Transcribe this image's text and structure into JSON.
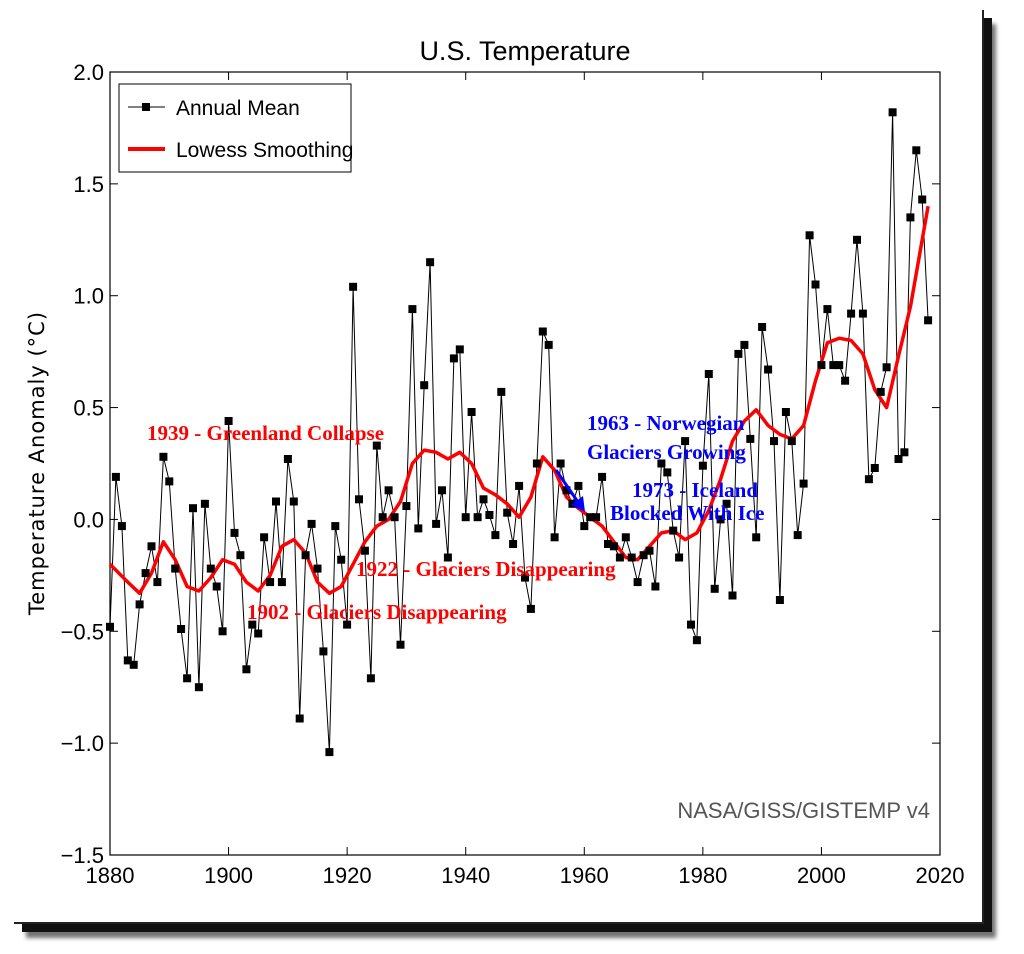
{
  "chart_data": {
    "type": "line",
    "title": "U.S. Temperature",
    "xlabel": "",
    "ylabel": "Temperature Anomaly (°C)",
    "xlim": [
      1880,
      2020
    ],
    "ylim": [
      -1.5,
      2.0
    ],
    "x_ticks": [
      1880,
      1900,
      1920,
      1940,
      1960,
      1980,
      2000,
      2020
    ],
    "y_ticks": [
      -1.5,
      -1.0,
      -0.5,
      0.0,
      0.5,
      1.0,
      1.5,
      2.0
    ],
    "y_tick_labels": [
      "−1.5",
      "−1.0",
      "−0.5",
      "0.0",
      "0.5",
      "1.0",
      "1.5",
      "2.0"
    ],
    "grid": false,
    "legend_position": "top-left",
    "source_note": "NASA/GISS/GISTEMP v4",
    "series": [
      {
        "name": "Annual Mean",
        "color": "#000000",
        "marker": "square",
        "x": [
          1880,
          1881,
          1882,
          1883,
          1884,
          1885,
          1886,
          1887,
          1888,
          1889,
          1890,
          1891,
          1892,
          1893,
          1894,
          1895,
          1896,
          1897,
          1898,
          1899,
          1900,
          1901,
          1902,
          1903,
          1904,
          1905,
          1906,
          1907,
          1908,
          1909,
          1910,
          1911,
          1912,
          1913,
          1914,
          1915,
          1916,
          1917,
          1918,
          1919,
          1920,
          1921,
          1922,
          1923,
          1924,
          1925,
          1926,
          1927,
          1928,
          1929,
          1930,
          1931,
          1932,
          1933,
          1934,
          1935,
          1936,
          1937,
          1938,
          1939,
          1940,
          1941,
          1942,
          1943,
          1944,
          1945,
          1946,
          1947,
          1948,
          1949,
          1950,
          1951,
          1952,
          1953,
          1954,
          1955,
          1956,
          1957,
          1958,
          1959,
          1960,
          1961,
          1962,
          1963,
          1964,
          1965,
          1966,
          1967,
          1968,
          1969,
          1970,
          1971,
          1972,
          1973,
          1974,
          1975,
          1976,
          1977,
          1978,
          1979,
          1980,
          1981,
          1982,
          1983,
          1984,
          1985,
          1986,
          1987,
          1988,
          1989,
          1990,
          1991,
          1992,
          1993,
          1994,
          1995,
          1996,
          1997,
          1998,
          1999,
          2000,
          2001,
          2002,
          2003,
          2004,
          2005,
          2006,
          2007,
          2008,
          2009,
          2010,
          2011,
          2012,
          2013,
          2014,
          2015,
          2016,
          2017,
          2018
        ],
        "values": [
          -0.48,
          0.19,
          -0.03,
          -0.63,
          -0.65,
          -0.38,
          -0.24,
          -0.12,
          -0.28,
          0.28,
          0.17,
          -0.22,
          -0.49,
          -0.71,
          0.05,
          -0.75,
          0.07,
          -0.22,
          -0.3,
          -0.5,
          0.44,
          -0.06,
          -0.16,
          -0.67,
          -0.47,
          -0.51,
          -0.08,
          -0.28,
          0.08,
          -0.28,
          0.27,
          0.08,
          -0.89,
          -0.16,
          -0.02,
          -0.22,
          -0.59,
          -1.04,
          -0.03,
          -0.18,
          -0.47,
          1.04,
          0.09,
          -0.14,
          -0.71,
          0.33,
          0.01,
          0.13,
          0.01,
          -0.56,
          0.06,
          0.94,
          -0.04,
          0.6,
          1.15,
          -0.02,
          0.13,
          -0.17,
          0.72,
          0.76,
          0.01,
          0.48,
          0.01,
          0.09,
          0.02,
          -0.07,
          0.57,
          0.03,
          -0.11,
          0.15,
          -0.26,
          -0.4,
          0.25,
          0.84,
          0.78,
          -0.08,
          0.25,
          0.13,
          0.07,
          0.15,
          -0.03,
          0.01,
          0.01,
          0.19,
          -0.11,
          -0.12,
          -0.17,
          -0.08,
          -0.17,
          -0.28,
          -0.16,
          -0.14,
          -0.3,
          0.25,
          0.21,
          -0.05,
          -0.17,
          0.35,
          -0.47,
          -0.54,
          0.24,
          0.65,
          -0.31,
          0.0,
          0.07,
          -0.34,
          0.74,
          0.78,
          0.36,
          -0.08,
          0.86,
          0.67,
          0.35,
          -0.36,
          0.48,
          0.35,
          -0.07,
          0.16,
          1.27,
          1.05,
          0.69,
          0.94,
          0.69,
          0.69,
          0.62,
          0.92,
          1.25,
          0.92,
          0.18,
          0.23,
          0.57,
          0.68,
          1.82,
          0.27,
          0.3,
          1.35,
          1.65,
          1.43,
          0.89
        ]
      },
      {
        "name": "Lowess Smoothing",
        "color": "#ff0000",
        "x": [
          1880,
          1883,
          1885,
          1887,
          1889,
          1891,
          1893,
          1895,
          1897,
          1899,
          1901,
          1903,
          1905,
          1907,
          1909,
          1911,
          1913,
          1915,
          1917,
          1919,
          1921,
          1923,
          1925,
          1927,
          1929,
          1931,
          1933,
          1935,
          1937,
          1939,
          1941,
          1943,
          1945,
          1947,
          1949,
          1951,
          1953,
          1955,
          1957,
          1959,
          1961,
          1963,
          1965,
          1967,
          1969,
          1971,
          1973,
          1975,
          1977,
          1979,
          1981,
          1983,
          1985,
          1987,
          1989,
          1991,
          1993,
          1995,
          1997,
          1999,
          2001,
          2003,
          2005,
          2007,
          2009,
          2011,
          2013,
          2015,
          2018
        ],
        "values": [
          -0.2,
          -0.28,
          -0.33,
          -0.24,
          -0.1,
          -0.18,
          -0.3,
          -0.32,
          -0.26,
          -0.18,
          -0.2,
          -0.28,
          -0.32,
          -0.25,
          -0.12,
          -0.09,
          -0.15,
          -0.28,
          -0.33,
          -0.3,
          -0.2,
          -0.1,
          -0.03,
          0.0,
          0.08,
          0.25,
          0.31,
          0.3,
          0.27,
          0.3,
          0.25,
          0.14,
          0.11,
          0.07,
          0.01,
          0.1,
          0.28,
          0.22,
          0.1,
          0.05,
          0.01,
          -0.03,
          -0.1,
          -0.17,
          -0.18,
          -0.12,
          -0.06,
          -0.05,
          -0.09,
          -0.06,
          0.04,
          0.18,
          0.35,
          0.44,
          0.49,
          0.42,
          0.38,
          0.36,
          0.42,
          0.62,
          0.79,
          0.81,
          0.8,
          0.74,
          0.58,
          0.5,
          0.73,
          0.95,
          1.4
        ]
      }
    ],
    "annotations": [
      {
        "text": "1939 - Greenland Collapse",
        "color": "#ff0000"
      },
      {
        "text": "1922 - Glaciers Disappearing",
        "color": "#ff0000"
      },
      {
        "text": "1902 - Glaciers Disappearing",
        "color": "#ff0000"
      },
      {
        "text": "1963 - Norwegian",
        "color": "#0000ff"
      },
      {
        "text": "Glaciers Growing",
        "color": "#0000ff"
      },
      {
        "text": "1973 - Iceland",
        "color": "#0000ff"
      },
      {
        "text": "Blocked With Ice",
        "color": "#0000ff"
      }
    ]
  }
}
